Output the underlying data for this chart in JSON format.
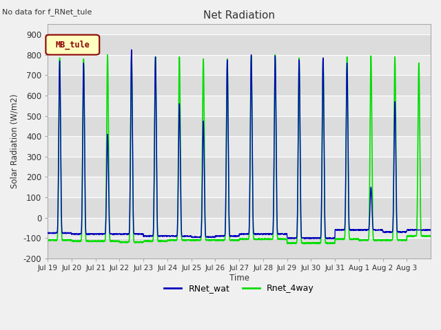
{
  "title": "Net Radiation",
  "no_data_text": "No data for f_RNet_tule",
  "ylabel": "Solar Radiation (W/m2)",
  "xlabel": "Time",
  "ylim": [
    -200,
    950
  ],
  "yticks": [
    -200,
    -100,
    0,
    100,
    200,
    300,
    400,
    500,
    600,
    700,
    800,
    900
  ],
  "legend_label": "MB_tule",
  "line1_label": "RNet_wat",
  "line2_label": "Rnet_4way",
  "line1_color": "#0000bb",
  "line2_color": "#00dd00",
  "n_days": 16,
  "xtick_labels": [
    "Jul 19",
    "Jul 20",
    "Jul 21",
    "Jul 22",
    "Jul 23",
    "Jul 24",
    "Jul 25",
    "Jul 26",
    "Jul 27",
    "Jul 28",
    "Jul 29",
    "Jul 30",
    "Jul 31",
    "Aug 1",
    "Aug 2",
    "Aug 3"
  ],
  "day_peaks_blue": [
    770,
    760,
    410,
    825,
    790,
    560,
    475,
    775,
    800,
    795,
    775,
    785,
    760,
    150,
    570,
    -60
  ],
  "day_peaks_green": [
    785,
    780,
    800,
    800,
    790,
    790,
    780,
    780,
    795,
    800,
    785,
    785,
    790,
    795,
    790,
    760
  ],
  "night_min_blue": [
    -75,
    -80,
    -80,
    -80,
    -90,
    -90,
    -95,
    -90,
    -80,
    -80,
    -100,
    -100,
    -60,
    -60,
    -70,
    -60
  ],
  "night_min_green": [
    -110,
    -115,
    -115,
    -120,
    -115,
    -110,
    -110,
    -110,
    -105,
    -105,
    -125,
    -125,
    -105,
    -110,
    -110,
    -90
  ],
  "stripe_colors": [
    "#dcdcdc",
    "#e8e8e8"
  ],
  "fig_bg": "#f0f0f0",
  "plot_bg": "#e8e8e8"
}
